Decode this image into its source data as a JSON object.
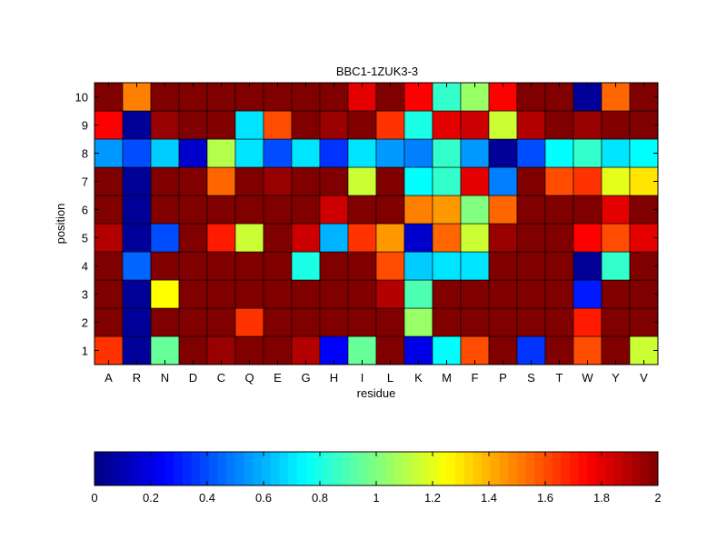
{
  "chart_data": {
    "type": "heatmap",
    "title": "BBC1-1ZUK3-3",
    "xlabel": "residue",
    "ylabel": "position",
    "x_categories": [
      "A",
      "R",
      "N",
      "D",
      "C",
      "Q",
      "E",
      "G",
      "H",
      "I",
      "L",
      "K",
      "M",
      "F",
      "P",
      "S",
      "T",
      "W",
      "Y",
      "V"
    ],
    "y_categories": [
      "1",
      "2",
      "3",
      "4",
      "5",
      "6",
      "7",
      "8",
      "9",
      "10"
    ],
    "colormap": "jet",
    "value_range": [
      0,
      2
    ],
    "colorbar_ticks": [
      "0",
      "0.2",
      "0.4",
      "0.6",
      "0.8",
      "1",
      "1.2",
      "1.4",
      "1.6",
      "1.8",
      "2"
    ],
    "values": [
      [
        1.65,
        0.05,
        0.95,
        2.0,
        1.95,
        2.0,
        2.0,
        1.9,
        0.25,
        0.95,
        2.0,
        0.2,
        0.75,
        1.6,
        2.0,
        0.35,
        2.0,
        1.6,
        2.0,
        1.15
      ],
      [
        2.0,
        0.05,
        2.0,
        2.0,
        2.0,
        1.65,
        2.0,
        2.0,
        2.0,
        2.0,
        2.0,
        1.05,
        2.0,
        2.0,
        2.0,
        2.0,
        2.0,
        1.7,
        2.0,
        2.0
      ],
      [
        2.0,
        0.05,
        1.25,
        2.0,
        2.0,
        2.0,
        2.0,
        2.0,
        2.0,
        2.0,
        1.9,
        0.9,
        2.0,
        2.0,
        2.0,
        2.0,
        2.0,
        0.3,
        2.0,
        2.0
      ],
      [
        2.0,
        0.45,
        2.0,
        2.0,
        2.0,
        2.0,
        2.0,
        0.8,
        2.0,
        2.0,
        1.6,
        0.65,
        0.7,
        0.7,
        2.0,
        2.0,
        2.0,
        0.05,
        0.85,
        2.0
      ],
      [
        1.9,
        0.05,
        0.4,
        2.0,
        1.7,
        1.15,
        2.0,
        1.85,
        0.6,
        1.65,
        1.45,
        0.15,
        1.55,
        1.15,
        1.95,
        2.0,
        2.0,
        1.75,
        1.6,
        1.8
      ],
      [
        2.0,
        0.05,
        2.0,
        2.0,
        2.0,
        2.0,
        2.0,
        2.0,
        1.85,
        2.0,
        2.0,
        1.5,
        1.45,
        1.0,
        1.55,
        2.0,
        2.0,
        2.0,
        1.8,
        2.0
      ],
      [
        2.0,
        0.05,
        2.0,
        2.0,
        1.55,
        2.0,
        1.95,
        2.0,
        2.0,
        1.15,
        2.0,
        0.75,
        0.85,
        1.8,
        0.5,
        2.0,
        1.6,
        1.65,
        1.2,
        1.3
      ],
      [
        0.55,
        0.4,
        0.65,
        0.15,
        1.1,
        0.7,
        0.4,
        0.7,
        0.35,
        0.7,
        0.55,
        0.5,
        0.85,
        0.55,
        0.05,
        0.4,
        0.75,
        0.85,
        0.7,
        0.75
      ],
      [
        1.75,
        0.05,
        1.95,
        2.0,
        2.0,
        0.7,
        1.6,
        2.0,
        1.95,
        2.0,
        1.65,
        0.8,
        1.8,
        1.85,
        1.15,
        1.9,
        2.0,
        1.95,
        2.0,
        2.0
      ],
      [
        2.0,
        1.5,
        2.0,
        2.0,
        2.0,
        2.0,
        2.0,
        2.0,
        2.0,
        1.8,
        2.0,
        1.75,
        0.85,
        1.05,
        1.75,
        2.0,
        2.0,
        0.05,
        1.55,
        2.0
      ]
    ]
  }
}
